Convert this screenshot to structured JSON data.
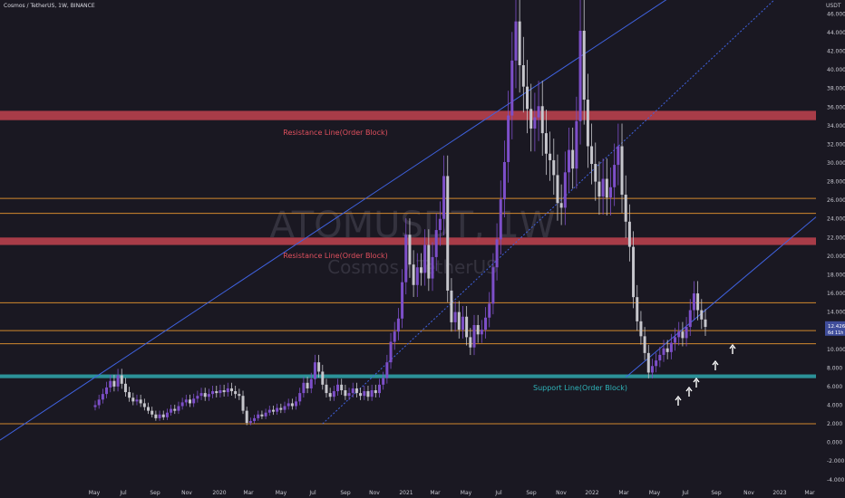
{
  "header": {
    "title": "Cosmos / TetherUS, 1W, BINANCE"
  },
  "watermark": {
    "symbol": "ATOMUSDT, 1W",
    "name": "Cosmos / TetherUS"
  },
  "price_axis": {
    "currency": "USDT",
    "ticks": [
      "46.000",
      "44.000",
      "42.000",
      "40.000",
      "38.000",
      "36.000",
      "34.000",
      "32.000",
      "30.000",
      "28.000",
      "26.000",
      "24.000",
      "22.000",
      "20.000",
      "18.000",
      "16.000",
      "14.000",
      "12.000",
      "10.000",
      "8.000",
      "6.000",
      "4.000",
      "2.000",
      "0.000",
      "-2.000",
      "-4.000"
    ],
    "current_price": "12.426",
    "countdown": "6d 11h"
  },
  "chart_data": {
    "type": "candlestick",
    "x_labels": [
      "May",
      "Jul",
      "Sep",
      "Nov",
      "2020",
      "Mar",
      "May",
      "Jul",
      "Sep",
      "Nov",
      "2021",
      "Mar",
      "May",
      "Jul",
      "Sep",
      "Nov",
      "2022",
      "Mar",
      "May",
      "Jul",
      "Sep",
      "Nov",
      "2023",
      "Mar"
    ],
    "ylim": [
      -4.8,
      47.5
    ],
    "colors": {
      "up": "#7d4fc9",
      "down": "#c6c6cc"
    },
    "horizontal_levels": [
      {
        "kind": "resistance-zone",
        "from": 34.6,
        "to": 35.6,
        "color": "#b8404d"
      },
      {
        "kind": "resistance-zone",
        "from": 21.2,
        "to": 22.0,
        "color": "#b8404d"
      },
      {
        "kind": "support-zone",
        "from": 6.9,
        "to": 7.3,
        "color": "#2fa0a6"
      },
      {
        "kind": "level",
        "value": 26.2,
        "color": "#d2882e"
      },
      {
        "kind": "level",
        "value": 24.6,
        "color": "#d2882e"
      },
      {
        "kind": "level",
        "value": 15.0,
        "color": "#d2882e"
      },
      {
        "kind": "level",
        "value": 12.0,
        "color": "#d2882e"
      },
      {
        "kind": "level",
        "value": 10.6,
        "color": "#d2882e"
      },
      {
        "kind": "level",
        "value": 2.0,
        "color": "#d2882e"
      }
    ],
    "annotations": [
      {
        "text": "Resistance Line(Order Block)",
        "color": "#e0505e"
      },
      {
        "text": "Resistance Line(Order Block)",
        "color": "#e0505e"
      },
      {
        "text": "Support Line(Order Block)",
        "color": "#2fb4ba"
      }
    ],
    "closes": [
      4.0,
      4.6,
      5.2,
      5.9,
      6.6,
      6.0,
      7.2,
      6.3,
      5.4,
      4.8,
      4.4,
      4.6,
      4.2,
      3.8,
      3.4,
      3.0,
      2.6,
      3.0,
      2.7,
      3.2,
      3.6,
      3.4,
      3.9,
      4.3,
      4.6,
      4.2,
      4.7,
      5.0,
      5.3,
      4.9,
      5.2,
      5.5,
      5.3,
      5.6,
      5.4,
      5.8,
      5.5,
      5.2,
      5.0,
      3.4,
      2.1,
      2.3,
      2.6,
      3.0,
      2.8,
      3.2,
      3.5,
      3.3,
      3.7,
      3.5,
      3.9,
      4.2,
      3.9,
      4.4,
      5.3,
      6.4,
      5.8,
      6.8,
      8.6,
      7.6,
      6.2,
      5.3,
      4.9,
      5.5,
      6.2,
      5.6,
      5.0,
      5.3,
      5.8,
      5.3,
      5.0,
      5.5,
      4.9,
      5.6,
      5.3,
      6.2,
      6.9,
      8.6,
      10.8,
      11.9,
      13.3,
      17.2,
      22.3,
      19.1,
      16.9,
      18.8,
      18.2,
      21.2,
      17.6,
      19.9,
      22.8,
      24.0,
      28.6,
      16.3,
      12.9,
      14.0,
      12.1,
      13.5,
      11.3,
      10.2,
      12.6,
      11.6,
      12.1,
      13.4,
      14.9,
      18.8,
      21.8,
      26.1,
      30.1,
      35.1,
      41.0,
      45.2,
      40.5,
      38.2,
      35.8,
      33.7,
      34.9,
      36.1,
      33.2,
      31.0,
      30.3,
      28.7,
      25.7,
      25.2,
      29.0,
      31.4,
      29.4,
      34.5,
      44.2,
      36.8,
      31.8,
      29.9,
      28.0,
      26.4,
      28.3,
      26.3,
      27.4,
      29.8,
      31.8,
      26.6,
      23.7,
      21.0,
      15.6,
      13.0,
      11.4,
      9.6,
      7.5,
      8.2,
      8.8,
      9.4,
      10.1,
      9.7,
      10.7,
      11.3,
      11.9,
      11.2,
      12.4,
      14.2,
      16.0,
      14.2,
      13.2,
      12.4
    ],
    "projection_channel": {
      "upper": [
        [
          0.0,
          7.0
        ],
        [
          145.0,
          46.0
        ]
      ],
      "mid": [
        [
          60.0,
          2.0
        ],
        [
          170.0,
          44.0
        ]
      ],
      "lower": [
        [
          140.0,
          7.0
        ],
        [
          175.0,
          19.0
        ]
      ]
    },
    "markers": "up-arrows"
  }
}
